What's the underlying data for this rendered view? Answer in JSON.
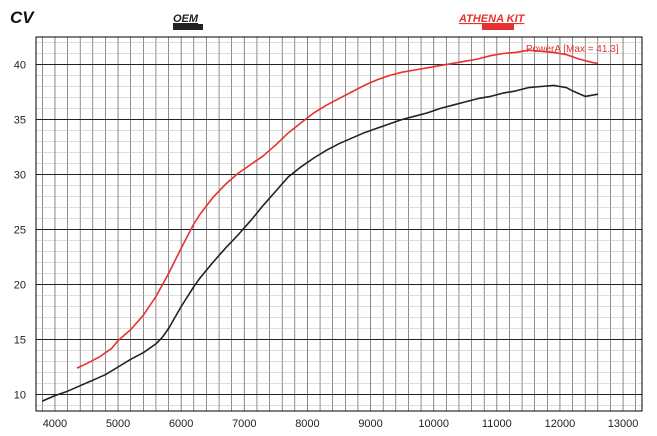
{
  "chart_data": {
    "type": "line",
    "ylabel": "CV",
    "xlim": [
      3700,
      13300
    ],
    "ylim": [
      8.5,
      42.5
    ],
    "x_ticks": [
      4000,
      5000,
      6000,
      7000,
      8000,
      9000,
      10000,
      11000,
      12000,
      13000
    ],
    "y_ticks": [
      10,
      15,
      20,
      25,
      30,
      35,
      40
    ],
    "grid": true,
    "annotation": {
      "text": "PowerA [Max = 41.3]",
      "color": "#e83030"
    },
    "series": [
      {
        "name": "OEM",
        "color": "#222222",
        "x": [
          3800,
          4000,
          4200,
          4400,
          4600,
          4800,
          5000,
          5200,
          5400,
          5600,
          5700,
          5800,
          6000,
          6200,
          6300,
          6500,
          6700,
          6900,
          7100,
          7300,
          7500,
          7700,
          7900,
          8100,
          8300,
          8500,
          8700,
          8900,
          9100,
          9300,
          9500,
          9700,
          9900,
          10100,
          10300,
          10500,
          10700,
          10900,
          11100,
          11300,
          11500,
          11700,
          11900,
          12000,
          12100,
          12200,
          12400,
          12600
        ],
        "y": [
          9.4,
          9.9,
          10.3,
          10.8,
          11.3,
          11.8,
          12.5,
          13.2,
          13.8,
          14.6,
          15.2,
          16.0,
          18.0,
          19.8,
          20.6,
          22.0,
          23.3,
          24.5,
          25.8,
          27.2,
          28.5,
          29.8,
          30.7,
          31.5,
          32.2,
          32.8,
          33.3,
          33.8,
          34.2,
          34.6,
          35.0,
          35.3,
          35.6,
          36.0,
          36.3,
          36.6,
          36.9,
          37.1,
          37.4,
          37.6,
          37.9,
          38.0,
          38.1,
          38.0,
          37.9,
          37.6,
          37.1,
          37.3
        ]
      },
      {
        "name": "ATHENA KIT",
        "color": "#e83030",
        "x": [
          4350,
          4500,
          4700,
          4900,
          5000,
          5200,
          5400,
          5600,
          5800,
          6000,
          6200,
          6300,
          6500,
          6700,
          6900,
          7100,
          7300,
          7500,
          7700,
          7900,
          8100,
          8300,
          8500,
          8700,
          8900,
          9100,
          9300,
          9500,
          9700,
          9900,
          10100,
          10300,
          10500,
          10700,
          10900,
          11100,
          11300,
          11500,
          11700,
          11900,
          12100,
          12300,
          12500,
          12600
        ],
        "y": [
          12.4,
          12.8,
          13.4,
          14.2,
          14.9,
          15.9,
          17.2,
          18.9,
          21.0,
          23.3,
          25.5,
          26.4,
          27.9,
          29.1,
          30.1,
          30.9,
          31.7,
          32.7,
          33.8,
          34.7,
          35.6,
          36.3,
          36.9,
          37.5,
          38.1,
          38.6,
          39.0,
          39.3,
          39.5,
          39.7,
          39.9,
          40.1,
          40.3,
          40.5,
          40.8,
          41.0,
          41.1,
          41.3,
          41.2,
          41.1,
          40.9,
          40.5,
          40.2,
          40.1
        ]
      }
    ]
  }
}
